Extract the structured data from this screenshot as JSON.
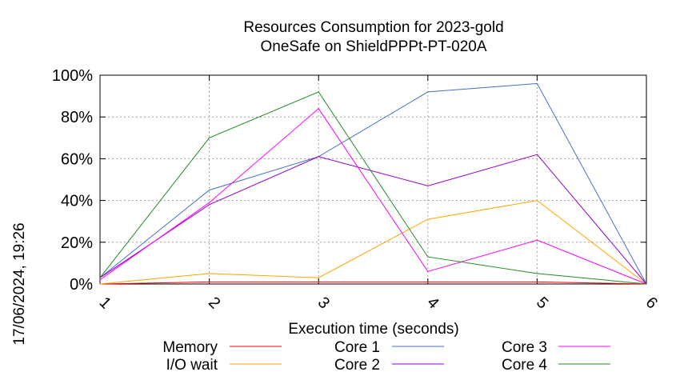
{
  "chart_data": {
    "type": "line",
    "title": "Resources Consumption for 2023-gold",
    "subtitle": "OneSafe on ShieldPPPt-PT-020A",
    "xlabel": "Execution time (seconds)",
    "ylabel": "",
    "timestamp": "17/06/2024, 19:26",
    "x": [
      1,
      2,
      3,
      4,
      5,
      6
    ],
    "x_tick_labels": [
      "1",
      "2",
      "3",
      "4",
      "5",
      "6"
    ],
    "xlim": [
      1,
      6
    ],
    "ylim": [
      0,
      100
    ],
    "y_ticks": [
      0,
      20,
      40,
      60,
      80,
      100
    ],
    "y_tick_labels": [
      "0%",
      "20%",
      "40%",
      "60%",
      "80%",
      "100%"
    ],
    "grid": true,
    "legend_position": "bottom",
    "series": [
      {
        "name": "Memory",
        "color": "#ff0000",
        "values": [
          0,
          1,
          1,
          1,
          1,
          0
        ]
      },
      {
        "name": "I/O wait",
        "color": "#ffa500",
        "values": [
          0,
          5,
          3,
          31,
          40,
          0
        ]
      },
      {
        "name": "Core 1",
        "color": "#4472c4",
        "values": [
          3,
          45,
          61,
          92,
          96,
          0
        ]
      },
      {
        "name": "Core 2",
        "color": "#9400d3",
        "values": [
          3,
          38,
          61,
          47,
          62,
          0
        ]
      },
      {
        "name": "Core 3",
        "color": "#ff00ff",
        "values": [
          2,
          39,
          84,
          6,
          21,
          0
        ]
      },
      {
        "name": "Core 4",
        "color": "#228b22",
        "values": [
          3,
          70,
          92,
          13,
          5,
          0
        ]
      }
    ]
  }
}
